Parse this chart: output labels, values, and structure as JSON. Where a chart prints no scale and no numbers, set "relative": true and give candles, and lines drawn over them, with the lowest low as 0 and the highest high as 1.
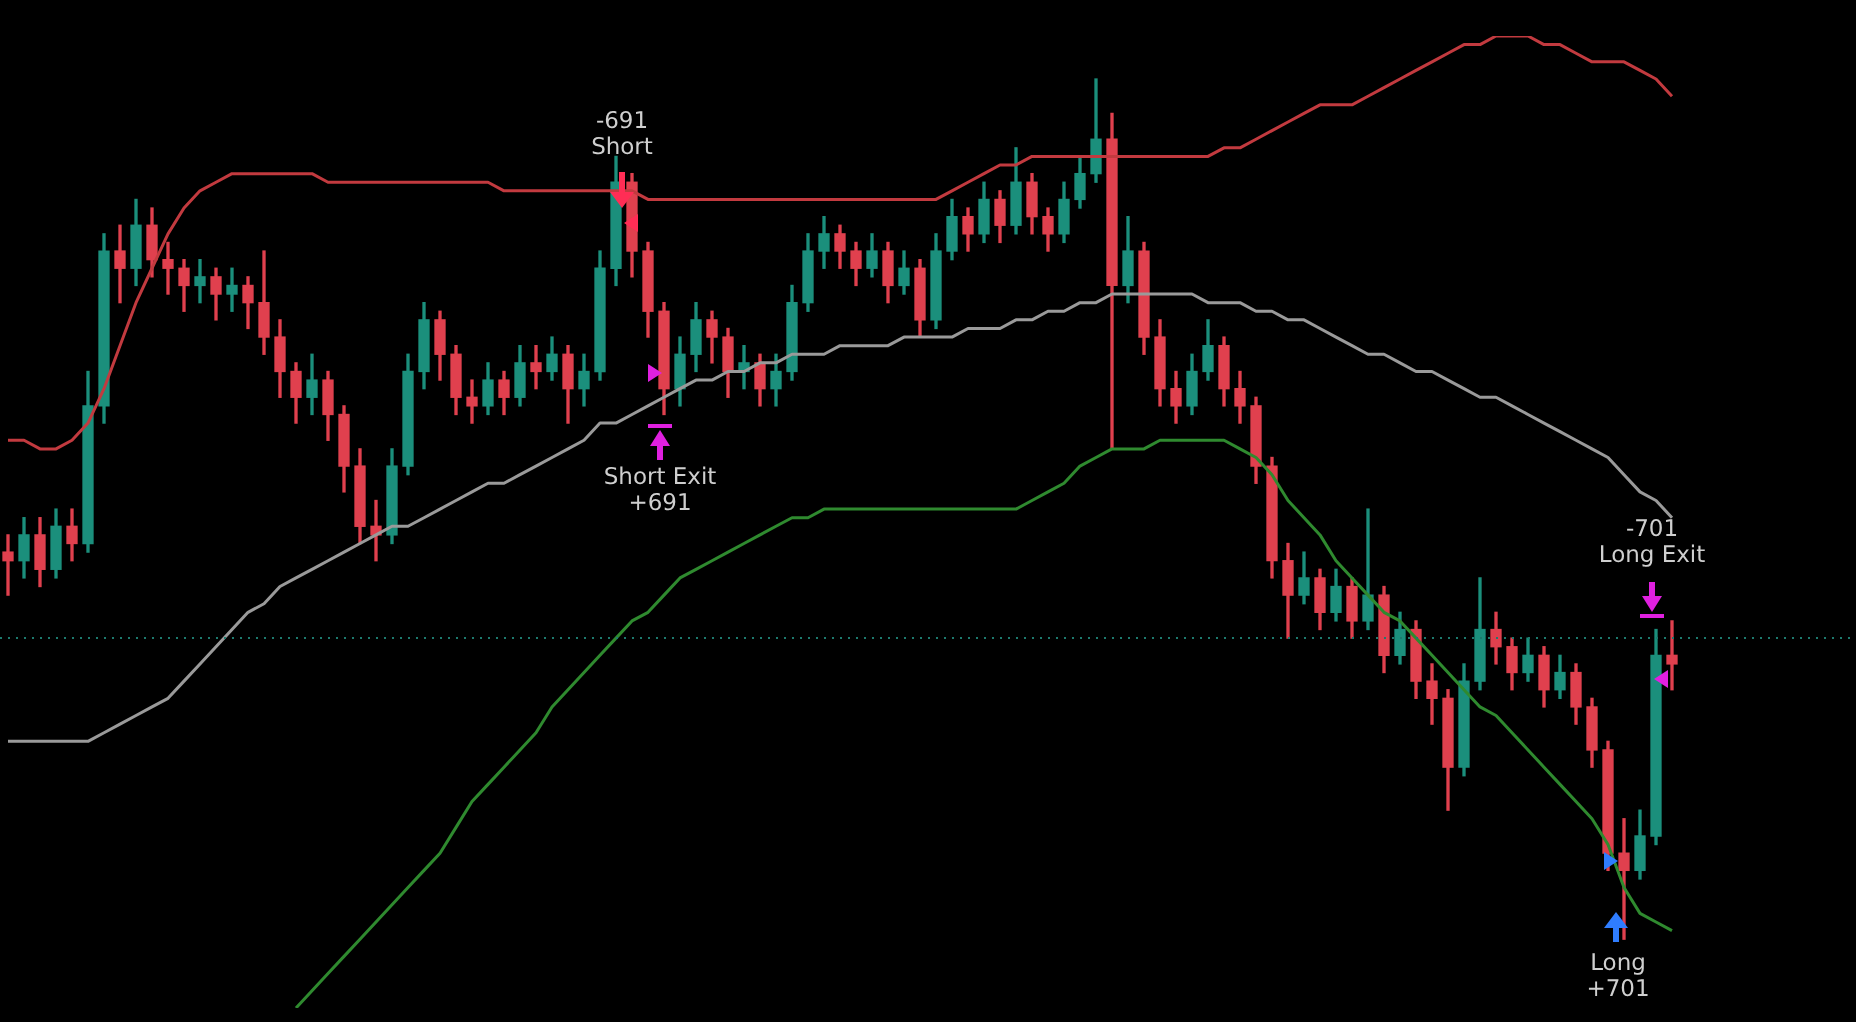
{
  "chart_data": {
    "type": "candlestick",
    "relative": true,
    "marker": "none",
    "categories": [
      null,
      null,
      null,
      null,
      null,
      null,
      null,
      null,
      null,
      null,
      null,
      null,
      null,
      null,
      null,
      null,
      null,
      null,
      null,
      null,
      null,
      null,
      null,
      null,
      null,
      null,
      null,
      null,
      null,
      null,
      null,
      null,
      null,
      null,
      null,
      null,
      null,
      null,
      null,
      null,
      null,
      null,
      null,
      null,
      null,
      null,
      null,
      null,
      null,
      null,
      null,
      null,
      null,
      null,
      null,
      null,
      null,
      null,
      null,
      null,
      null,
      null,
      null,
      null,
      null,
      null,
      null,
      null,
      null,
      null,
      null,
      null,
      null,
      null,
      null,
      null,
      null,
      null,
      null,
      null,
      null,
      null,
      null,
      null,
      null,
      null,
      null,
      null,
      null,
      null,
      null,
      null,
      null,
      null,
      null,
      null,
      null,
      null,
      null,
      null,
      null,
      null,
      null,
      null,
      null
    ],
    "ohlc": [
      [
        0.45,
        0.47,
        0.4,
        0.44
      ],
      [
        0.44,
        0.49,
        0.42,
        0.47
      ],
      [
        0.47,
        0.49,
        0.41,
        0.43
      ],
      [
        0.43,
        0.5,
        0.42,
        0.48
      ],
      [
        0.48,
        0.5,
        0.44,
        0.46
      ],
      [
        0.46,
        0.66,
        0.45,
        0.62
      ],
      [
        0.62,
        0.82,
        0.6,
        0.8
      ],
      [
        0.8,
        0.83,
        0.74,
        0.78
      ],
      [
        0.78,
        0.86,
        0.76,
        0.83
      ],
      [
        0.83,
        0.85,
        0.77,
        0.79
      ],
      [
        0.79,
        0.81,
        0.75,
        0.78
      ],
      [
        0.78,
        0.79,
        0.73,
        0.76
      ],
      [
        0.76,
        0.79,
        0.74,
        0.77
      ],
      [
        0.77,
        0.78,
        0.72,
        0.75
      ],
      [
        0.75,
        0.78,
        0.73,
        0.76
      ],
      [
        0.76,
        0.77,
        0.71,
        0.74
      ],
      [
        0.74,
        0.8,
        0.68,
        0.7
      ],
      [
        0.7,
        0.72,
        0.63,
        0.66
      ],
      [
        0.66,
        0.67,
        0.6,
        0.63
      ],
      [
        0.63,
        0.68,
        0.61,
        0.65
      ],
      [
        0.65,
        0.66,
        0.58,
        0.61
      ],
      [
        0.61,
        0.62,
        0.52,
        0.55
      ],
      [
        0.55,
        0.57,
        0.46,
        0.48
      ],
      [
        0.48,
        0.51,
        0.44,
        0.47
      ],
      [
        0.47,
        0.57,
        0.46,
        0.55
      ],
      [
        0.55,
        0.68,
        0.54,
        0.66
      ],
      [
        0.66,
        0.74,
        0.64,
        0.72
      ],
      [
        0.72,
        0.73,
        0.65,
        0.68
      ],
      [
        0.68,
        0.69,
        0.61,
        0.63
      ],
      [
        0.63,
        0.65,
        0.6,
        0.62
      ],
      [
        0.62,
        0.67,
        0.61,
        0.65
      ],
      [
        0.65,
        0.66,
        0.61,
        0.63
      ],
      [
        0.63,
        0.69,
        0.62,
        0.67
      ],
      [
        0.67,
        0.69,
        0.64,
        0.66
      ],
      [
        0.66,
        0.7,
        0.65,
        0.68
      ],
      [
        0.68,
        0.69,
        0.6,
        0.64
      ],
      [
        0.64,
        0.68,
        0.62,
        0.66
      ],
      [
        0.66,
        0.8,
        0.65,
        0.78
      ],
      [
        0.78,
        0.91,
        0.76,
        0.88
      ],
      [
        0.88,
        0.89,
        0.77,
        0.8
      ],
      [
        0.8,
        0.81,
        0.7,
        0.73
      ],
      [
        0.73,
        0.74,
        0.61,
        0.64
      ],
      [
        0.64,
        0.7,
        0.62,
        0.68
      ],
      [
        0.68,
        0.74,
        0.66,
        0.72
      ],
      [
        0.72,
        0.73,
        0.67,
        0.7
      ],
      [
        0.7,
        0.71,
        0.63,
        0.66
      ],
      [
        0.66,
        0.69,
        0.64,
        0.67
      ],
      [
        0.67,
        0.68,
        0.62,
        0.64
      ],
      [
        0.64,
        0.68,
        0.62,
        0.66
      ],
      [
        0.66,
        0.76,
        0.65,
        0.74
      ],
      [
        0.74,
        0.82,
        0.73,
        0.8
      ],
      [
        0.8,
        0.84,
        0.78,
        0.82
      ],
      [
        0.82,
        0.83,
        0.78,
        0.8
      ],
      [
        0.8,
        0.81,
        0.76,
        0.78
      ],
      [
        0.78,
        0.82,
        0.77,
        0.8
      ],
      [
        0.8,
        0.81,
        0.74,
        0.76
      ],
      [
        0.76,
        0.8,
        0.75,
        0.78
      ],
      [
        0.78,
        0.79,
        0.7,
        0.72
      ],
      [
        0.72,
        0.82,
        0.71,
        0.8
      ],
      [
        0.8,
        0.86,
        0.79,
        0.84
      ],
      [
        0.84,
        0.85,
        0.8,
        0.82
      ],
      [
        0.82,
        0.88,
        0.81,
        0.86
      ],
      [
        0.86,
        0.87,
        0.81,
        0.83
      ],
      [
        0.83,
        0.92,
        0.82,
        0.88
      ],
      [
        0.88,
        0.89,
        0.82,
        0.84
      ],
      [
        0.84,
        0.85,
        0.8,
        0.82
      ],
      [
        0.82,
        0.88,
        0.81,
        0.86
      ],
      [
        0.86,
        0.91,
        0.85,
        0.89
      ],
      [
        0.89,
        1.0,
        0.88,
        0.93
      ],
      [
        0.93,
        0.96,
        0.57,
        0.76
      ],
      [
        0.76,
        0.84,
        0.74,
        0.8
      ],
      [
        0.8,
        0.81,
        0.68,
        0.7
      ],
      [
        0.7,
        0.72,
        0.62,
        0.64
      ],
      [
        0.64,
        0.66,
        0.6,
        0.62
      ],
      [
        0.62,
        0.68,
        0.61,
        0.66
      ],
      [
        0.66,
        0.72,
        0.65,
        0.69
      ],
      [
        0.69,
        0.7,
        0.62,
        0.64
      ],
      [
        0.64,
        0.66,
        0.6,
        0.62
      ],
      [
        0.62,
        0.63,
        0.53,
        0.55
      ],
      [
        0.55,
        0.56,
        0.42,
        0.44
      ],
      [
        0.44,
        0.46,
        0.35,
        0.4
      ],
      [
        0.4,
        0.45,
        0.39,
        0.42
      ],
      [
        0.42,
        0.43,
        0.36,
        0.38
      ],
      [
        0.38,
        0.43,
        0.37,
        0.41
      ],
      [
        0.41,
        0.42,
        0.35,
        0.37
      ],
      [
        0.37,
        0.5,
        0.36,
        0.4
      ],
      [
        0.4,
        0.41,
        0.31,
        0.33
      ],
      [
        0.33,
        0.38,
        0.32,
        0.36
      ],
      [
        0.36,
        0.37,
        0.28,
        0.3
      ],
      [
        0.3,
        0.32,
        0.25,
        0.28
      ],
      [
        0.28,
        0.29,
        0.15,
        0.2
      ],
      [
        0.2,
        0.32,
        0.19,
        0.3
      ],
      [
        0.3,
        0.42,
        0.29,
        0.36
      ],
      [
        0.36,
        0.38,
        0.32,
        0.34
      ],
      [
        0.34,
        0.35,
        0.29,
        0.31
      ],
      [
        0.31,
        0.35,
        0.3,
        0.33
      ],
      [
        0.33,
        0.34,
        0.27,
        0.29
      ],
      [
        0.29,
        0.33,
        0.28,
        0.31
      ],
      [
        0.31,
        0.32,
        0.25,
        0.27
      ],
      [
        0.27,
        0.28,
        0.2,
        0.22
      ],
      [
        0.22,
        0.23,
        0.08,
        0.1
      ],
      [
        0.1,
        0.14,
        0,
        0.08
      ],
      [
        0.08,
        0.15,
        0.07,
        0.12
      ],
      [
        0.12,
        0.36,
        0.11,
        0.33
      ],
      [
        0.33,
        0.37,
        0.29,
        0.32
      ]
    ],
    "colors": [
      "#e0404e",
      "#1b8f7c",
      "#e0404e",
      "#1b8f7c",
      "#e0404e",
      "#1b8f7c",
      "#1b8f7c",
      "#e0404e",
      "#1b8f7c",
      "#e0404e",
      "#e0404e",
      "#e0404e",
      "#1b8f7c",
      "#e0404e",
      "#1b8f7c",
      "#e0404e",
      "#e0404e",
      "#e0404e",
      "#e0404e",
      "#1b8f7c",
      "#e0404e",
      "#e0404e",
      "#e0404e",
      "#e0404e",
      "#1b8f7c",
      "#1b8f7c",
      "#1b8f7c",
      "#e0404e",
      "#e0404e",
      "#e0404e",
      "#1b8f7c",
      "#e0404e",
      "#1b8f7c",
      "#e0404e",
      "#1b8f7c",
      "#e0404e",
      "#1b8f7c",
      "#1b8f7c",
      "#1b8f7c",
      "#e0404e",
      "#e0404e",
      "#e0404e",
      "#1b8f7c",
      "#1b8f7c",
      "#e0404e",
      "#e0404e",
      "#1b8f7c",
      "#e0404e",
      "#1b8f7c",
      "#1b8f7c",
      "#1b8f7c",
      "#1b8f7c",
      "#e0404e",
      "#e0404e",
      "#1b8f7c",
      "#e0404e",
      "#1b8f7c",
      "#e0404e",
      "#1b8f7c",
      "#1b8f7c",
      "#e0404e",
      "#1b8f7c",
      "#e0404e",
      "#1b8f7c",
      "#e0404e",
      "#e0404e",
      "#1b8f7c",
      "#1b8f7c",
      "#1b8f7c",
      "#e0404e",
      "#1b8f7c",
      "#e0404e",
      "#e0404e",
      "#e0404e",
      "#1b8f7c",
      "#1b8f7c",
      "#e0404e",
      "#e0404e",
      "#e0404e",
      "#e0404e",
      "#e0404e",
      "#1b8f7c",
      "#e0404e",
      "#1b8f7c",
      "#e0404e",
      "#1b8f7c",
      "#e0404e",
      "#1b8f7c",
      "#e0404e",
      "#e0404e",
      "#e0404e",
      "#1b8f7c",
      "#1b8f7c",
      "#e0404e",
      "#e0404e",
      "#1b8f7c",
      "#e0404e",
      "#1b8f7c",
      "#e0404e",
      "#e0404e",
      "#e0404e",
      "#e0404e",
      "#1b8f7c",
      "#1b8f7c",
      "#e0404e"
    ],
    "series": [
      {
        "type": "line",
        "color": "#c23a3f",
        "values": [
          0.58,
          0.58,
          0.57,
          0.57,
          0.58,
          0.6,
          0.64,
          0.69,
          0.74,
          0.78,
          0.82,
          0.85,
          0.87,
          0.88,
          0.89,
          0.89,
          0.89,
          0.89,
          0.89,
          0.89,
          0.88,
          0.88,
          0.88,
          0.88,
          0.88,
          0.88,
          0.88,
          0.88,
          0.88,
          0.88,
          0.88,
          0.87,
          0.87,
          0.87,
          0.87,
          0.87,
          0.87,
          0.87,
          0.87,
          0.87,
          0.86,
          0.86,
          0.86,
          0.86,
          0.86,
          0.86,
          0.86,
          0.86,
          0.86,
          0.86,
          0.86,
          0.86,
          0.86,
          0.86,
          0.86,
          0.86,
          0.86,
          0.86,
          0.86,
          0.87,
          0.88,
          0.89,
          0.9,
          0.9,
          0.91,
          0.91,
          0.91,
          0.91,
          0.91,
          0.91,
          0.91,
          0.91,
          0.91,
          0.91,
          0.91,
          0.91,
          0.92,
          0.92,
          0.93,
          0.94,
          0.95,
          0.96,
          0.97,
          0.97,
          0.97,
          0.98,
          0.99,
          1.0,
          1.01,
          1.02,
          1.03,
          1.04,
          1.04,
          1.05,
          1.05,
          1.05,
          1.04,
          1.04,
          1.03,
          1.02,
          1.02,
          1.02,
          1.01,
          1.0,
          0.98
        ]
      },
      {
        "type": "line",
        "color": "#9a9a9a",
        "values": [
          0.23,
          0.23,
          0.23,
          0.23,
          0.23,
          0.23,
          0.24,
          0.25,
          0.26,
          0.27,
          0.28,
          0.3,
          0.32,
          0.34,
          0.36,
          0.38,
          0.39,
          0.41,
          0.42,
          0.43,
          0.44,
          0.45,
          0.46,
          0.47,
          0.48,
          0.48,
          0.49,
          0.5,
          0.51,
          0.52,
          0.53,
          0.53,
          0.54,
          0.55,
          0.56,
          0.57,
          0.58,
          0.6,
          0.6,
          0.61,
          0.62,
          0.63,
          0.64,
          0.65,
          0.65,
          0.66,
          0.66,
          0.67,
          0.67,
          0.68,
          0.68,
          0.68,
          0.69,
          0.69,
          0.69,
          0.69,
          0.7,
          0.7,
          0.7,
          0.7,
          0.71,
          0.71,
          0.71,
          0.72,
          0.72,
          0.73,
          0.73,
          0.74,
          0.74,
          0.75,
          0.75,
          0.75,
          0.75,
          0.75,
          0.75,
          0.74,
          0.74,
          0.74,
          0.73,
          0.73,
          0.72,
          0.72,
          0.71,
          0.7,
          0.69,
          0.68,
          0.68,
          0.67,
          0.66,
          0.66,
          0.65,
          0.64,
          0.63,
          0.63,
          0.62,
          0.61,
          0.6,
          0.59,
          0.58,
          0.57,
          0.56,
          0.54,
          0.52,
          0.51,
          0.49
        ]
      },
      {
        "type": "line",
        "color": "#2f8a2f",
        "values": [
          null,
          null,
          null,
          null,
          null,
          null,
          null,
          null,
          null,
          null,
          null,
          null,
          null,
          null,
          null,
          null,
          null,
          null,
          -0.08,
          -0.06,
          -0.04,
          -0.02,
          0.0,
          0.02,
          0.04,
          0.06,
          0.08,
          0.1,
          0.13,
          0.16,
          0.18,
          0.2,
          0.22,
          0.24,
          0.27,
          0.29,
          0.31,
          0.33,
          0.35,
          0.37,
          0.38,
          0.4,
          0.42,
          0.43,
          0.44,
          0.45,
          0.46,
          0.47,
          0.48,
          0.49,
          0.49,
          0.5,
          0.5,
          0.5,
          0.5,
          0.5,
          0.5,
          0.5,
          0.5,
          0.5,
          0.5,
          0.5,
          0.5,
          0.5,
          0.51,
          0.52,
          0.53,
          0.55,
          0.56,
          0.57,
          0.57,
          0.57,
          0.58,
          0.58,
          0.58,
          0.58,
          0.58,
          0.57,
          0.56,
          0.54,
          0.51,
          0.49,
          0.47,
          0.44,
          0.42,
          0.4,
          0.38,
          0.37,
          0.35,
          0.33,
          0.31,
          0.29,
          0.27,
          0.26,
          0.24,
          0.22,
          0.2,
          0.18,
          0.16,
          0.14,
          0.11,
          0.06,
          0.03,
          0.02,
          0.01
        ]
      }
    ],
    "ref_lines": [
      {
        "axis": "y",
        "value": 0.35,
        "color": "#1d7a6e",
        "line_style": "dotted"
      }
    ],
    "annotations": [
      "-691\nShort",
      "Short Exit\n+691",
      "-701\nLong Exit",
      "Long\n+701"
    ]
  }
}
